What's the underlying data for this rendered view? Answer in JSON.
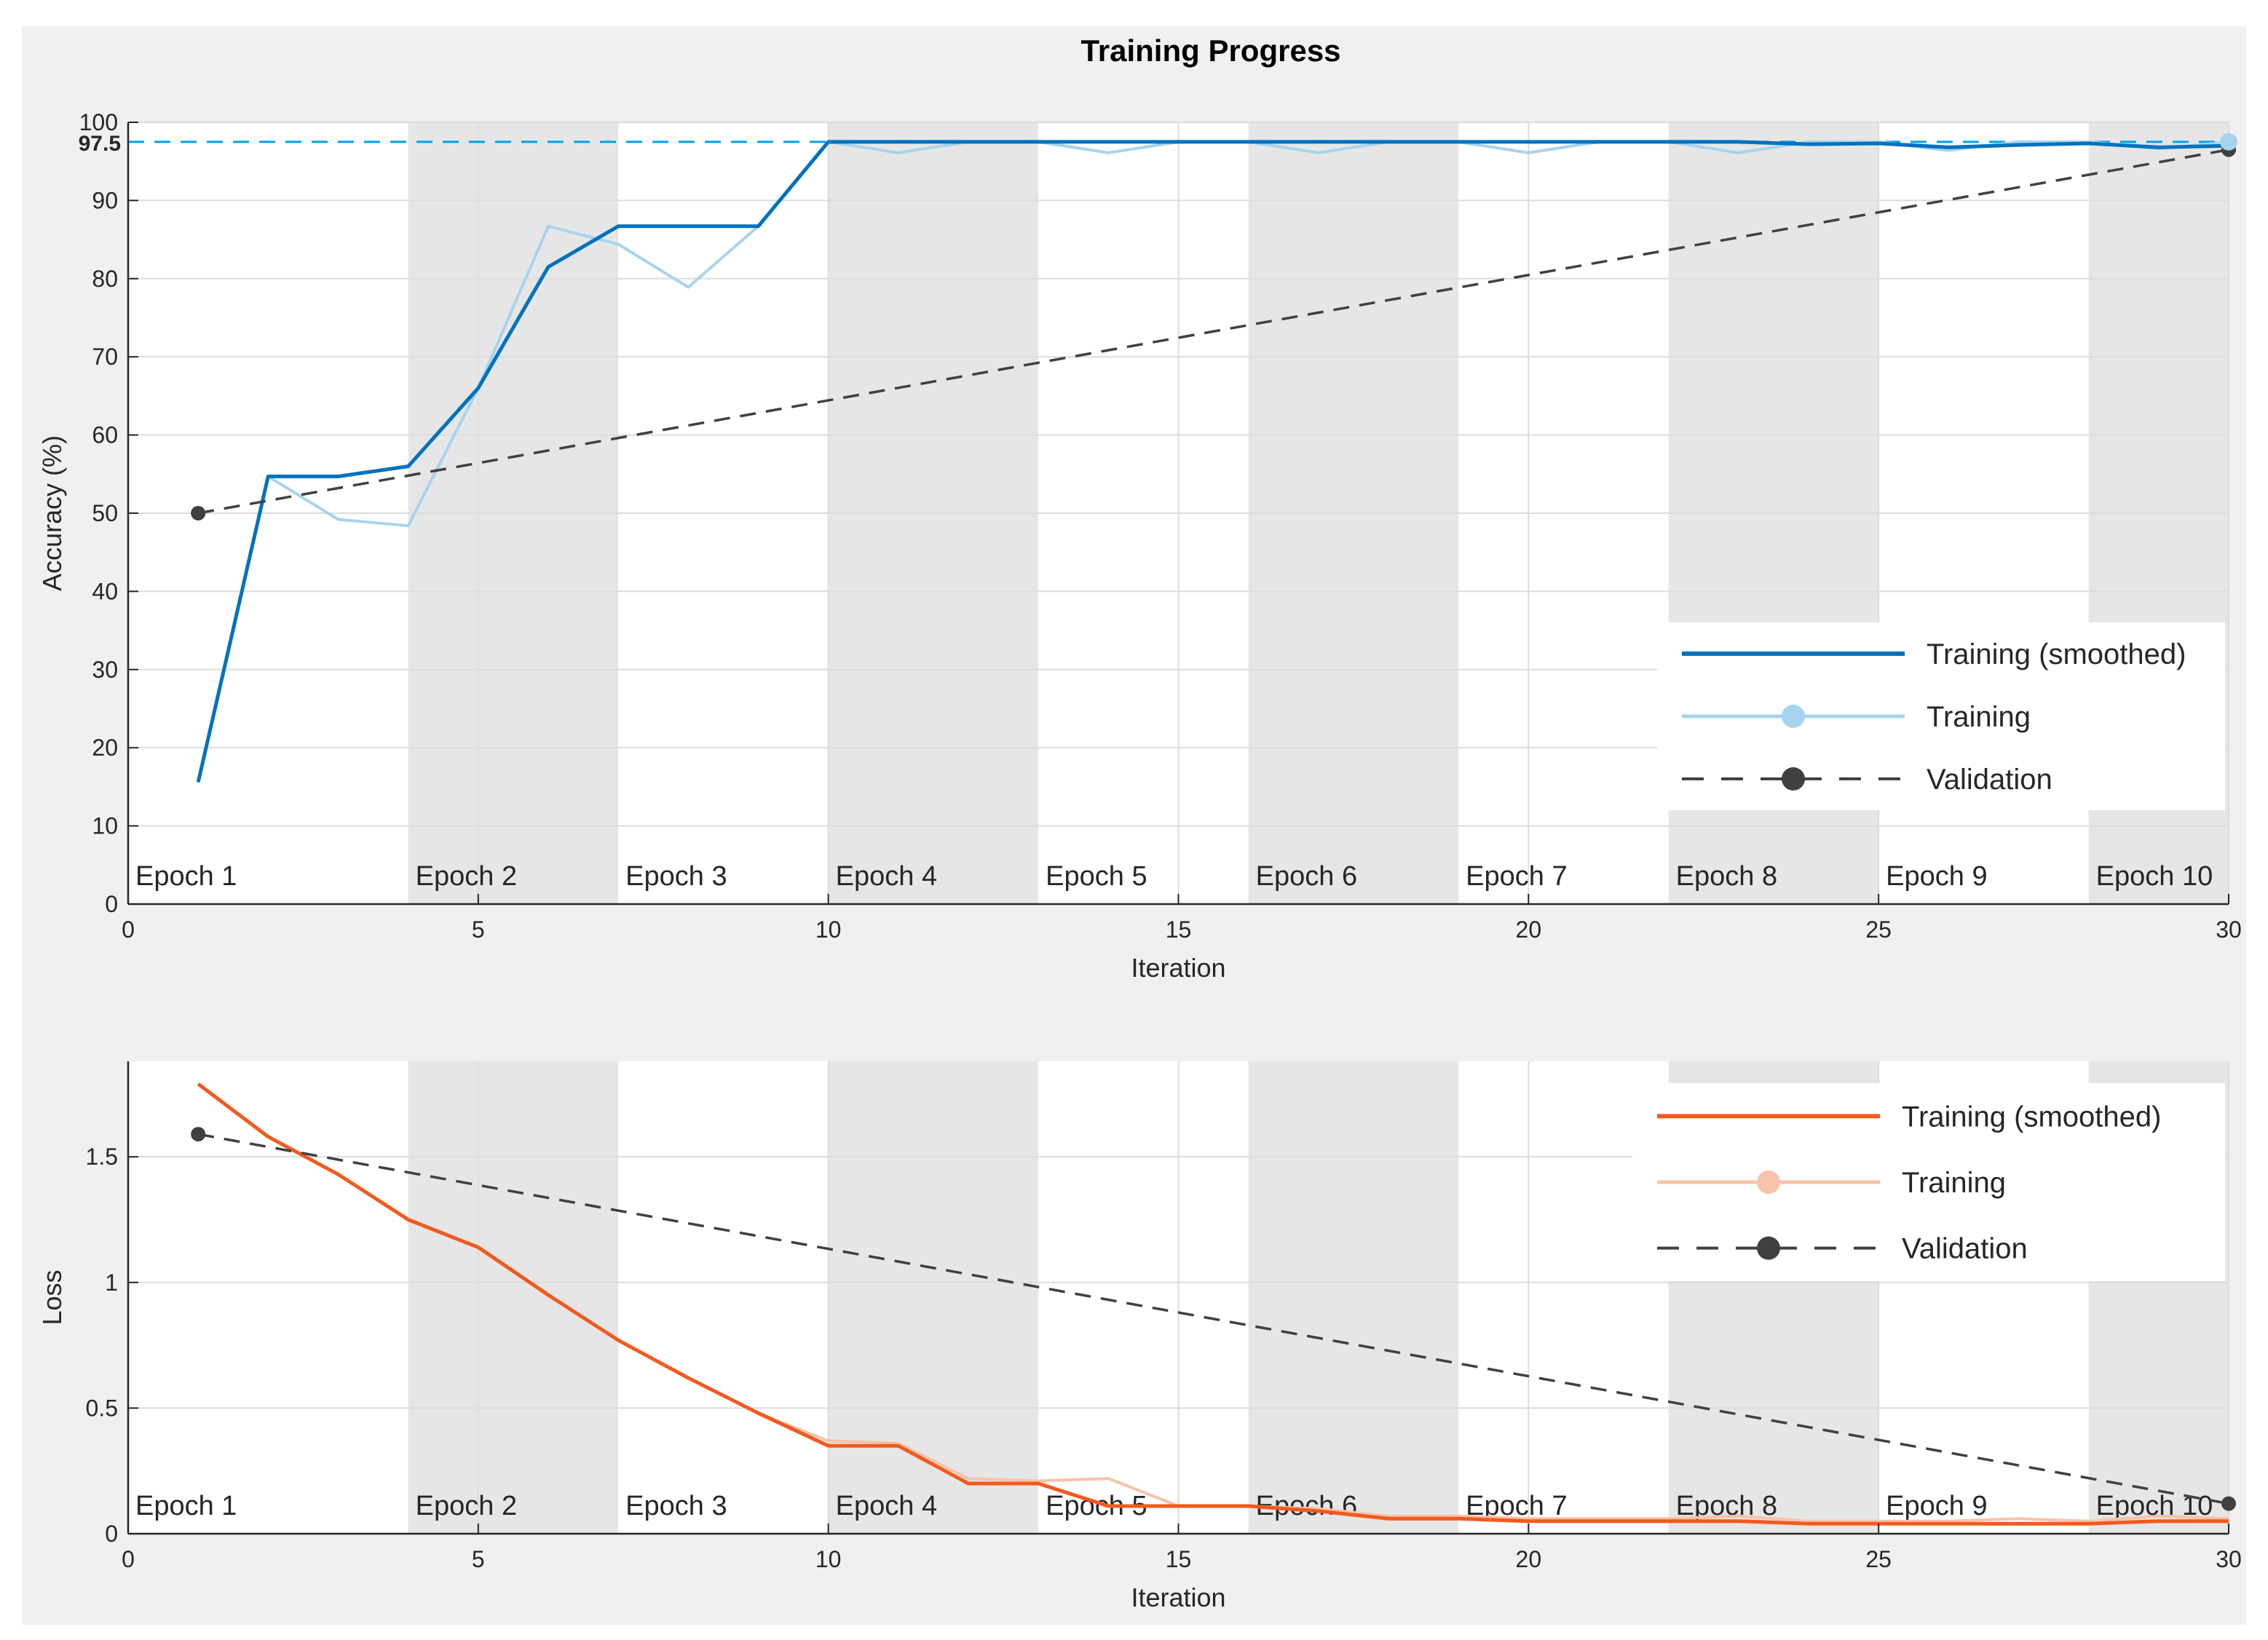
{
  "title": "Training Progress",
  "colors": {
    "accuracy_smoothed": "#0072bd",
    "accuracy_raw": "#a6d4ee",
    "loss_smoothed": "#f25a1e",
    "loss_raw": "#f9c2aa",
    "validation": "#404040",
    "final_marker": "#00a2e8",
    "epoch_shade": "#e6e6e6"
  },
  "chart_data": [
    {
      "type": "line",
      "title": "Training Progress",
      "xlabel": "Iteration",
      "ylabel": "Accuracy (%)",
      "xlim": [
        0,
        30
      ],
      "ylim": [
        0,
        100
      ],
      "xticks": [
        0,
        5,
        10,
        15,
        20,
        25,
        30
      ],
      "yticks": [
        0,
        10,
        20,
        30,
        40,
        50,
        60,
        70,
        80,
        90,
        100
      ],
      "grid": true,
      "final_value_label": "97.5",
      "final_value": 97.5,
      "epochs": [
        {
          "label": "Epoch 1",
          "start": 0,
          "end": 4,
          "shaded": false
        },
        {
          "label": "Epoch 2",
          "start": 4,
          "end": 7,
          "shaded": true
        },
        {
          "label": "Epoch 3",
          "start": 7,
          "end": 10,
          "shaded": false
        },
        {
          "label": "Epoch 4",
          "start": 10,
          "end": 13,
          "shaded": true
        },
        {
          "label": "Epoch 5",
          "start": 13,
          "end": 16,
          "shaded": false
        },
        {
          "label": "Epoch 6",
          "start": 16,
          "end": 19,
          "shaded": true
        },
        {
          "label": "Epoch 7",
          "start": 19,
          "end": 22,
          "shaded": false
        },
        {
          "label": "Epoch 8",
          "start": 22,
          "end": 25,
          "shaded": true
        },
        {
          "label": "Epoch 9",
          "start": 25,
          "end": 28,
          "shaded": false
        },
        {
          "label": "Epoch 10",
          "start": 28,
          "end": 30,
          "shaded": true
        }
      ],
      "legend_position": "bottom-right",
      "series": [
        {
          "name": "Training (smoothed)",
          "style": "solid",
          "x": [
            1,
            2,
            3,
            4,
            5,
            6,
            7,
            8,
            9,
            10,
            11,
            12,
            13,
            14,
            15,
            16,
            17,
            18,
            19,
            20,
            21,
            22,
            23,
            24,
            25,
            26,
            27,
            28,
            29,
            30
          ],
          "values": [
            15.6,
            54.7,
            54.7,
            56.0,
            66.0,
            81.5,
            86.7,
            86.7,
            86.7,
            97.5,
            97.5,
            97.5,
            97.5,
            97.5,
            97.5,
            97.5,
            97.5,
            97.5,
            97.5,
            97.5,
            97.5,
            97.5,
            97.5,
            97.2,
            97.3,
            96.8,
            97.1,
            97.3,
            96.8,
            97.0
          ]
        },
        {
          "name": "Training",
          "style": "solid-marker",
          "x": [
            1,
            2,
            3,
            4,
            5,
            6,
            7,
            8,
            9,
            10,
            11,
            12,
            13,
            14,
            15,
            16,
            17,
            18,
            19,
            20,
            21,
            22,
            23,
            24,
            25,
            26,
            27,
            28,
            29,
            30
          ],
          "values": [
            15.6,
            54.7,
            49.2,
            48.4,
            66.0,
            86.7,
            84.4,
            78.9,
            86.7,
            97.5,
            96.1,
            97.5,
            97.5,
            96.1,
            97.5,
            97.5,
            96.1,
            97.5,
            97.5,
            96.1,
            97.5,
            97.5,
            96.1,
            97.5,
            97.5,
            96.4,
            97.5,
            97.5,
            96.6,
            97.5
          ]
        },
        {
          "name": "Validation",
          "style": "dashed-marker",
          "x": [
            1,
            30
          ],
          "values": [
            50.0,
            96.5
          ]
        }
      ]
    },
    {
      "type": "line",
      "xlabel": "Iteration",
      "ylabel": "Loss",
      "xlim": [
        0,
        30
      ],
      "ylim": [
        0,
        1.88
      ],
      "xticks": [
        0,
        5,
        10,
        15,
        20,
        25,
        30
      ],
      "yticks": [
        0,
        0.5,
        1,
        1.5
      ],
      "ytick_labels": [
        "0",
        "0.5",
        "1",
        "1.5"
      ],
      "grid": true,
      "epochs": [
        {
          "label": "Epoch 1",
          "start": 0,
          "end": 4,
          "shaded": false
        },
        {
          "label": "Epoch 2",
          "start": 4,
          "end": 7,
          "shaded": true
        },
        {
          "label": "Epoch 3",
          "start": 7,
          "end": 10,
          "shaded": false
        },
        {
          "label": "Epoch 4",
          "start": 10,
          "end": 13,
          "shaded": true
        },
        {
          "label": "Epoch 5",
          "start": 13,
          "end": 16,
          "shaded": false
        },
        {
          "label": "Epoch 6",
          "start": 16,
          "end": 19,
          "shaded": true
        },
        {
          "label": "Epoch 7",
          "start": 19,
          "end": 22,
          "shaded": false
        },
        {
          "label": "Epoch 8",
          "start": 22,
          "end": 25,
          "shaded": true
        },
        {
          "label": "Epoch 9",
          "start": 25,
          "end": 28,
          "shaded": false
        },
        {
          "label": "Epoch 10",
          "start": 28,
          "end": 30,
          "shaded": true
        }
      ],
      "legend_position": "top-right",
      "series": [
        {
          "name": "Training (smoothed)",
          "style": "solid",
          "x": [
            1,
            2,
            3,
            4,
            5,
            6,
            7,
            8,
            9,
            10,
            11,
            12,
            13,
            14,
            15,
            16,
            17,
            18,
            19,
            20,
            21,
            22,
            23,
            24,
            25,
            26,
            27,
            28,
            29,
            30
          ],
          "values": [
            1.79,
            1.58,
            1.43,
            1.25,
            1.14,
            0.95,
            0.77,
            0.62,
            0.48,
            0.35,
            0.35,
            0.2,
            0.2,
            0.11,
            0.11,
            0.11,
            0.09,
            0.06,
            0.06,
            0.05,
            0.05,
            0.05,
            0.05,
            0.04,
            0.04,
            0.04,
            0.04,
            0.04,
            0.05,
            0.05
          ]
        },
        {
          "name": "Training",
          "style": "solid-marker",
          "x": [
            1,
            2,
            3,
            4,
            5,
            6,
            7,
            8,
            9,
            10,
            11,
            12,
            13,
            14,
            15,
            16,
            17,
            18,
            19,
            20,
            21,
            22,
            23,
            24,
            25,
            26,
            27,
            28,
            29,
            30
          ],
          "values": [
            1.79,
            1.58,
            1.43,
            1.25,
            1.14,
            0.95,
            0.77,
            0.62,
            0.48,
            0.37,
            0.36,
            0.22,
            0.21,
            0.22,
            0.11,
            0.11,
            0.1,
            0.07,
            0.07,
            0.06,
            0.06,
            0.06,
            0.07,
            0.05,
            0.05,
            0.05,
            0.06,
            0.05,
            0.07,
            0.06
          ]
        },
        {
          "name": "Validation",
          "style": "dashed-marker",
          "x": [
            1,
            30
          ],
          "values": [
            1.59,
            0.12
          ]
        }
      ]
    }
  ]
}
